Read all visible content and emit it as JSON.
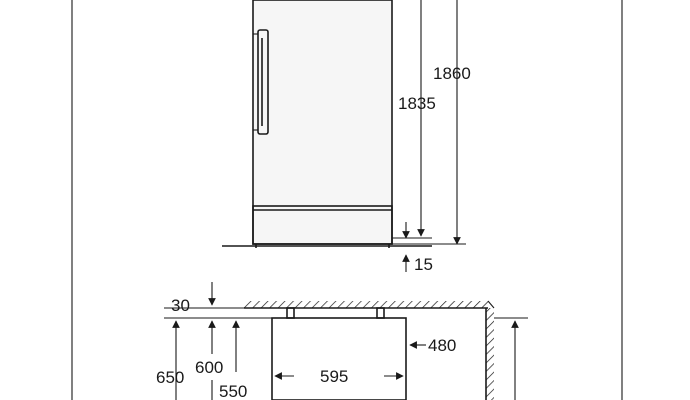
{
  "dimensions": {
    "total_height": "1860",
    "body_height": "1835",
    "feet_height": "15",
    "wall_gap": "30",
    "door_projection": "600",
    "body_depth": "650",
    "depth_with_handle": "550",
    "width": "595",
    "side_clearance": "480"
  },
  "colors": {
    "line": "#1a1a1a",
    "background": "#ffffff"
  }
}
